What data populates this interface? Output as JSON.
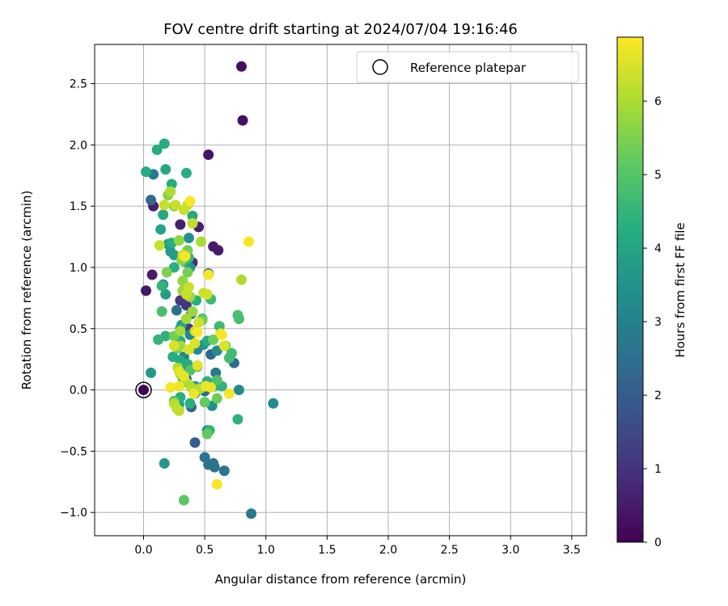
{
  "chart_data": {
    "type": "scatter",
    "title": "FOV centre drift starting at 2024/07/04 19:16:46",
    "xlabel": "Angular distance from reference (arcmin)",
    "ylabel": "Rotation from reference (arcmin)",
    "xlim": [
      -0.4,
      3.62
    ],
    "ylim": [
      -1.19,
      2.82
    ],
    "xticks": [
      0.0,
      0.5,
      1.0,
      1.5,
      2.0,
      2.5,
      3.0,
      3.5
    ],
    "xtick_labels": [
      "0.0",
      "0.5",
      "1.0",
      "1.5",
      "2.0",
      "2.5",
      "3.0",
      "3.5"
    ],
    "yticks": [
      -1.0,
      -0.5,
      0.0,
      0.5,
      1.0,
      1.5,
      2.0,
      2.5
    ],
    "ytick_labels": [
      "−1.0",
      "−0.5",
      "0.0",
      "0.5",
      "1.0",
      "1.5",
      "2.0",
      "2.5"
    ],
    "grid": true,
    "legend": {
      "placement": "upper-right",
      "entries": [
        "Reference platepar"
      ]
    },
    "colorbar": {
      "label": "Hours from first FF file",
      "range": [
        0,
        6.87
      ],
      "ticks": [
        0,
        1,
        2,
        3,
        4,
        5,
        6
      ],
      "tick_labels": [
        "0",
        "1",
        "2",
        "3",
        "4",
        "5",
        "6"
      ],
      "colormap": "viridis"
    },
    "reference_point": {
      "x": 0.0,
      "y": 0.0,
      "c": 0.0
    },
    "points": [
      {
        "x": 0.8,
        "y": 2.64,
        "c": 0.3
      },
      {
        "x": 0.81,
        "y": 2.2,
        "c": 0.3
      },
      {
        "x": 0.53,
        "y": 1.92,
        "c": 0.4
      },
      {
        "x": 0.57,
        "y": 1.17,
        "c": 0.5
      },
      {
        "x": 0.61,
        "y": 1.14,
        "c": 0.5
      },
      {
        "x": 0.45,
        "y": 1.33,
        "c": 0.6
      },
      {
        "x": 0.3,
        "y": 1.35,
        "c": 0.6
      },
      {
        "x": 0.07,
        "y": 0.94,
        "c": 0.5
      },
      {
        "x": 0.02,
        "y": 0.81,
        "c": 0.4
      },
      {
        "x": 0.4,
        "y": 1.04,
        "c": 0.8
      },
      {
        "x": 0.35,
        "y": 0.69,
        "c": 1.0
      },
      {
        "x": 0.37,
        "y": 0.5,
        "c": 1.2
      },
      {
        "x": 0.3,
        "y": 0.73,
        "c": 1.1
      },
      {
        "x": 0.42,
        "y": -0.43,
        "c": 2.0
      },
      {
        "x": 0.08,
        "y": 1.5,
        "c": 0.6
      },
      {
        "x": 0.06,
        "y": 1.55,
        "c": 2.4
      },
      {
        "x": 0.08,
        "y": 1.76,
        "c": 2.8
      },
      {
        "x": 0.27,
        "y": 0.65,
        "c": 2.5
      },
      {
        "x": 0.53,
        "y": 0.95,
        "c": 2.2
      },
      {
        "x": 0.39,
        "y": 0.62,
        "c": 2.6
      },
      {
        "x": 0.5,
        "y": -0.55,
        "c": 2.6
      },
      {
        "x": 0.57,
        "y": -0.6,
        "c": 2.6
      },
      {
        "x": 0.58,
        "y": -0.63,
        "c": 2.6
      },
      {
        "x": 0.53,
        "y": -0.61,
        "c": 2.6
      },
      {
        "x": 0.66,
        "y": -0.66,
        "c": 2.7
      },
      {
        "x": 0.88,
        "y": -1.01,
        "c": 2.8
      },
      {
        "x": 0.55,
        "y": 0.29,
        "c": 2.3
      },
      {
        "x": 0.39,
        "y": -0.14,
        "c": 2.2
      },
      {
        "x": 0.59,
        "y": 0.14,
        "c": 2.7
      },
      {
        "x": 0.74,
        "y": 0.22,
        "c": 2.5
      },
      {
        "x": 0.35,
        "y": 0.09,
        "c": 2.0
      },
      {
        "x": 0.5,
        "y": -0.01,
        "c": 2.4
      },
      {
        "x": 0.27,
        "y": 0.42,
        "c": 3.0
      },
      {
        "x": 0.33,
        "y": 0.27,
        "c": 3.0
      },
      {
        "x": 0.38,
        "y": 0.45,
        "c": 3.2
      },
      {
        "x": 0.44,
        "y": 0.33,
        "c": 3.3
      },
      {
        "x": 0.49,
        "y": 0.37,
        "c": 3.4
      },
      {
        "x": 0.56,
        "y": -0.13,
        "c": 3.4
      },
      {
        "x": 0.52,
        "y": -0.33,
        "c": 3.4
      },
      {
        "x": 0.78,
        "y": 0.0,
        "c": 3.3
      },
      {
        "x": 1.06,
        "y": -0.11,
        "c": 3.3
      },
      {
        "x": 0.6,
        "y": 0.32,
        "c": 3.3
      },
      {
        "x": 0.17,
        "y": -0.6,
        "c": 3.6
      },
      {
        "x": 0.06,
        "y": 0.14,
        "c": 3.7
      },
      {
        "x": 0.18,
        "y": 0.78,
        "c": 3.8
      },
      {
        "x": 0.16,
        "y": 0.86,
        "c": 3.3
      },
      {
        "x": 0.2,
        "y": 1.19,
        "c": 3.7
      },
      {
        "x": 0.22,
        "y": 1.13,
        "c": 3.8
      },
      {
        "x": 0.25,
        "y": 1.1,
        "c": 3.8
      },
      {
        "x": 0.37,
        "y": 1.24,
        "c": 3.4
      },
      {
        "x": 0.38,
        "y": 1.0,
        "c": 3.6
      },
      {
        "x": 0.3,
        "y": 0.5,
        "c": 3.6
      },
      {
        "x": 0.31,
        "y": 0.53,
        "c": 3.9
      },
      {
        "x": 0.35,
        "y": 0.2,
        "c": 3.8
      },
      {
        "x": 0.42,
        "y": 0.03,
        "c": 3.9
      },
      {
        "x": 0.29,
        "y": -0.12,
        "c": 3.9
      },
      {
        "x": 0.14,
        "y": 1.31,
        "c": 4.0
      },
      {
        "x": 0.16,
        "y": 1.43,
        "c": 4.1
      },
      {
        "x": 0.23,
        "y": 1.68,
        "c": 4.2
      },
      {
        "x": 0.35,
        "y": 1.77,
        "c": 4.2
      },
      {
        "x": 0.11,
        "y": 1.96,
        "c": 4.2
      },
      {
        "x": 0.17,
        "y": 2.01,
        "c": 4.2
      },
      {
        "x": 0.02,
        "y": 1.78,
        "c": 4.2
      },
      {
        "x": 0.18,
        "y": 1.8,
        "c": 4.1
      },
      {
        "x": 0.4,
        "y": 1.42,
        "c": 4.1
      },
      {
        "x": 0.23,
        "y": 1.2,
        "c": 4.3
      },
      {
        "x": 0.25,
        "y": 1.0,
        "c": 4.3
      },
      {
        "x": 0.43,
        "y": 0.73,
        "c": 4.3
      },
      {
        "x": 0.48,
        "y": 0.58,
        "c": 4.3
      },
      {
        "x": 0.52,
        "y": 0.4,
        "c": 4.2
      },
      {
        "x": 0.3,
        "y": 0.4,
        "c": 4.3
      },
      {
        "x": 0.24,
        "y": 0.27,
        "c": 4.3
      },
      {
        "x": 0.3,
        "y": 0.24,
        "c": 4.2
      },
      {
        "x": 0.36,
        "y": 0.21,
        "c": 4.2
      },
      {
        "x": 0.32,
        "y": 0.1,
        "c": 4.2
      },
      {
        "x": 0.3,
        "y": -0.06,
        "c": 4.3
      },
      {
        "x": 0.38,
        "y": -0.11,
        "c": 4.3
      },
      {
        "x": 0.42,
        "y": -0.03,
        "c": 4.3
      },
      {
        "x": 0.47,
        "y": 0.02,
        "c": 4.3
      },
      {
        "x": 0.52,
        "y": 0.07,
        "c": 4.4
      },
      {
        "x": 0.58,
        "y": 0.03,
        "c": 4.4
      },
      {
        "x": 0.64,
        "y": 0.03,
        "c": 4.4
      },
      {
        "x": 0.77,
        "y": -0.24,
        "c": 4.4
      },
      {
        "x": 0.54,
        "y": -0.33,
        "c": 4.5
      },
      {
        "x": 0.18,
        "y": 0.44,
        "c": 4.4
      },
      {
        "x": 0.12,
        "y": 0.41,
        "c": 4.5
      },
      {
        "x": 0.15,
        "y": 0.85,
        "c": 4.5
      },
      {
        "x": 0.33,
        "y": 1.05,
        "c": 4.5
      },
      {
        "x": 0.37,
        "y": 1.08,
        "c": 4.6
      },
      {
        "x": 0.55,
        "y": 0.74,
        "c": 4.6
      },
      {
        "x": 0.62,
        "y": 0.52,
        "c": 4.6
      },
      {
        "x": 0.7,
        "y": 0.26,
        "c": 4.7
      },
      {
        "x": 0.72,
        "y": 0.3,
        "c": 4.7
      },
      {
        "x": 0.78,
        "y": 0.58,
        "c": 4.8
      },
      {
        "x": 0.77,
        "y": 0.61,
        "c": 4.8
      },
      {
        "x": 0.15,
        "y": 0.64,
        "c": 4.8
      },
      {
        "x": 0.38,
        "y": 0.16,
        "c": 4.9
      },
      {
        "x": 0.44,
        "y": 0.19,
        "c": 4.9
      },
      {
        "x": 0.6,
        "y": 0.08,
        "c": 4.9
      },
      {
        "x": 0.25,
        "y": -0.09,
        "c": 5.0
      },
      {
        "x": 0.33,
        "y": -0.9,
        "c": 5.1
      },
      {
        "x": 0.52,
        "y": -0.36,
        "c": 5.2
      },
      {
        "x": 0.5,
        "y": -0.1,
        "c": 5.2
      },
      {
        "x": 0.6,
        "y": -0.07,
        "c": 5.3
      },
      {
        "x": 0.57,
        "y": 0.41,
        "c": 5.3
      },
      {
        "x": 0.67,
        "y": 0.36,
        "c": 5.3
      },
      {
        "x": 0.36,
        "y": 1.14,
        "c": 5.4
      },
      {
        "x": 0.36,
        "y": 0.96,
        "c": 5.4
      },
      {
        "x": 0.48,
        "y": 0.57,
        "c": 5.4
      },
      {
        "x": 0.25,
        "y": 0.44,
        "c": 5.4
      },
      {
        "x": 0.28,
        "y": 0.34,
        "c": 5.4
      },
      {
        "x": 0.19,
        "y": 0.96,
        "c": 5.5
      },
      {
        "x": 0.2,
        "y": 1.59,
        "c": 5.6
      },
      {
        "x": 0.25,
        "y": 1.5,
        "c": 5.6
      },
      {
        "x": 0.29,
        "y": 1.22,
        "c": 5.7
      },
      {
        "x": 0.31,
        "y": 1.06,
        "c": 5.7
      },
      {
        "x": 0.32,
        "y": 0.89,
        "c": 5.7
      },
      {
        "x": 0.32,
        "y": 0.81,
        "c": 5.8
      },
      {
        "x": 0.38,
        "y": 0.76,
        "c": 5.8
      },
      {
        "x": 0.4,
        "y": 0.64,
        "c": 5.8
      },
      {
        "x": 0.35,
        "y": 0.58,
        "c": 5.9
      },
      {
        "x": 0.3,
        "y": 0.48,
        "c": 5.9
      },
      {
        "x": 0.3,
        "y": 0.36,
        "c": 5.9
      },
      {
        "x": 0.28,
        "y": 0.18,
        "c": 6.0
      },
      {
        "x": 0.3,
        "y": 0.13,
        "c": 6.0
      },
      {
        "x": 0.35,
        "y": 0.06,
        "c": 6.0
      },
      {
        "x": 0.39,
        "y": 0.02,
        "c": 6.1
      },
      {
        "x": 0.46,
        "y": 0.01,
        "c": 6.1
      },
      {
        "x": 0.25,
        "y": -0.11,
        "c": 6.1
      },
      {
        "x": 0.27,
        "y": -0.15,
        "c": 6.2
      },
      {
        "x": 0.29,
        "y": -0.17,
        "c": 6.2
      },
      {
        "x": 0.8,
        "y": 0.9,
        "c": 6.0
      },
      {
        "x": 0.47,
        "y": 1.21,
        "c": 6.0
      },
      {
        "x": 0.4,
        "y": 1.36,
        "c": 6.2
      },
      {
        "x": 0.36,
        "y": 1.51,
        "c": 6.3
      },
      {
        "x": 0.33,
        "y": 1.47,
        "c": 6.3
      },
      {
        "x": 0.22,
        "y": 1.62,
        "c": 6.0
      },
      {
        "x": 0.17,
        "y": 1.51,
        "c": 6.3
      },
      {
        "x": 0.26,
        "y": 1.51,
        "c": 6.3
      },
      {
        "x": 0.13,
        "y": 1.18,
        "c": 6.3
      },
      {
        "x": 0.32,
        "y": 1.1,
        "c": 6.4
      },
      {
        "x": 0.37,
        "y": 0.84,
        "c": 6.3
      },
      {
        "x": 0.35,
        "y": 0.78,
        "c": 6.3
      },
      {
        "x": 0.49,
        "y": 0.79,
        "c": 6.3
      },
      {
        "x": 0.52,
        "y": 0.78,
        "c": 6.4
      },
      {
        "x": 0.45,
        "y": 0.55,
        "c": 6.4
      },
      {
        "x": 0.42,
        "y": 0.48,
        "c": 6.4
      },
      {
        "x": 0.63,
        "y": 0.46,
        "c": 6.5
      },
      {
        "x": 0.42,
        "y": 0.38,
        "c": 6.5
      },
      {
        "x": 0.25,
        "y": 0.36,
        "c": 6.5
      },
      {
        "x": 0.37,
        "y": 0.33,
        "c": 6.5
      },
      {
        "x": 0.66,
        "y": 0.36,
        "c": 6.5
      },
      {
        "x": 0.29,
        "y": 0.15,
        "c": 6.6
      },
      {
        "x": 0.33,
        "y": 0.11,
        "c": 6.6
      },
      {
        "x": 0.44,
        "y": 0.2,
        "c": 6.6
      },
      {
        "x": 0.41,
        "y": -0.03,
        "c": 6.7
      },
      {
        "x": 0.51,
        "y": 0.03,
        "c": 6.7
      },
      {
        "x": 0.55,
        "y": 0.02,
        "c": 6.7
      },
      {
        "x": 0.29,
        "y": 0.03,
        "c": 6.7
      },
      {
        "x": 0.22,
        "y": 0.02,
        "c": 6.8
      },
      {
        "x": 0.7,
        "y": -0.03,
        "c": 6.8
      },
      {
        "x": 0.6,
        "y": -0.77,
        "c": 6.8
      },
      {
        "x": 0.86,
        "y": 1.21,
        "c": 6.8
      },
      {
        "x": 0.53,
        "y": 0.94,
        "c": 6.8
      },
      {
        "x": 0.38,
        "y": 1.54,
        "c": 6.8
      },
      {
        "x": 0.64,
        "y": 0.45,
        "c": 6.8
      },
      {
        "x": 0.44,
        "y": 0.47,
        "c": 6.8
      },
      {
        "x": 0.34,
        "y": 1.09,
        "c": 6.8
      }
    ]
  }
}
